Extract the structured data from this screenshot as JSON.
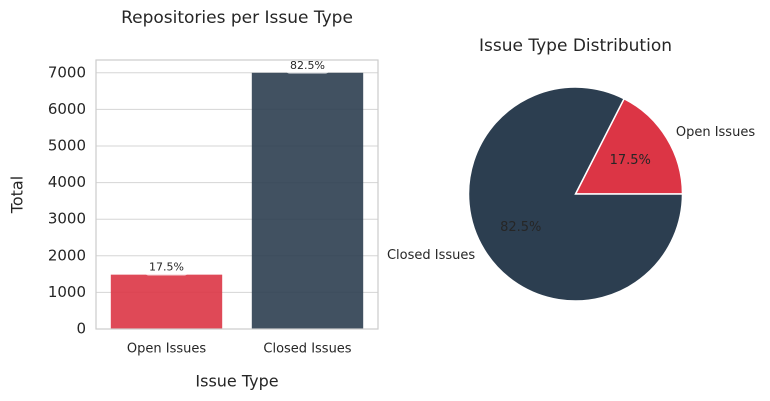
{
  "chart_data": [
    {
      "type": "bar",
      "title": "Repositories per Issue Type",
      "x_label": "Issue Type",
      "y_label": "Total",
      "categories": [
        "Open Issues",
        "Closed Issues"
      ],
      "values": [
        1485,
        7000
      ],
      "colors": [
        "#dc3545",
        "#2c3e50"
      ],
      "share_labels": [
        "17.5%",
        "82.5%"
      ],
      "ylim": [
        0,
        7350
      ],
      "yticks": [
        0,
        1000,
        2000,
        3000,
        4000,
        5000,
        6000,
        7000
      ],
      "grid": true
    },
    {
      "type": "pie",
      "title": "Issue Type Distribution",
      "categories": [
        "Open Issues",
        "Closed Issues"
      ],
      "values": [
        17.5,
        82.5
      ],
      "value_labels": [
        "17.5%",
        "82.5%"
      ],
      "colors": [
        "#dc3545",
        "#2c3e50"
      ]
    }
  ]
}
